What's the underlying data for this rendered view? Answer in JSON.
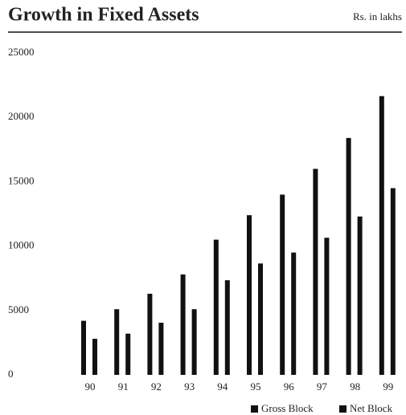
{
  "chart_data": {
    "type": "bar",
    "title": "Growth in Fixed Assets",
    "subtitle": "Rs. in lakhs",
    "categories": [
      "90",
      "91",
      "92",
      "93",
      "94",
      "95",
      "96",
      "97",
      "98",
      "99"
    ],
    "series": [
      {
        "name": "Gross Block",
        "color": "#111111",
        "values": [
          4200,
          5100,
          6300,
          7800,
          10500,
          12400,
          14000,
          16000,
          18400,
          21650
        ]
      },
      {
        "name": "Net Block",
        "color": "#111111",
        "values": [
          2800,
          3200,
          4050,
          5100,
          7350,
          8650,
          9500,
          10650,
          12300,
          14500
        ]
      }
    ],
    "ylim": [
      0,
      25000
    ],
    "yticks": [
      0,
      5000,
      10000,
      15000,
      20000,
      25000
    ],
    "grid": false,
    "legend": "bottom-right"
  }
}
